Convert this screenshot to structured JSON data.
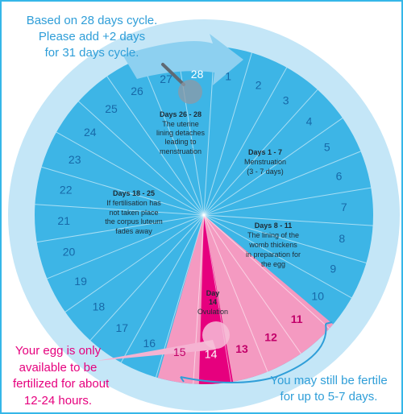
{
  "days": [
    "1",
    "2",
    "3",
    "4",
    "5",
    "6",
    "7",
    "8",
    "9",
    "10",
    "11",
    "12",
    "13",
    "14",
    "15",
    "16",
    "17",
    "18",
    "19",
    "20",
    "21",
    "22",
    "23",
    "24",
    "25",
    "26",
    "27",
    "28"
  ],
  "note_top": [
    "Based on 28 days cycle.",
    "Please add +2 days",
    "for 31 days cycle."
  ],
  "phases": [
    {
      "id": "days-26-28",
      "title": "Days 26 - 28",
      "lines": [
        "The uterine",
        "lining detaches",
        "leading to",
        "menstruation"
      ]
    },
    {
      "id": "days-1-7",
      "title": "Days 1 - 7",
      "lines": [
        "Menstruation",
        "(3 - 7 days)"
      ]
    },
    {
      "id": "days-18-25",
      "title": "Days 18 - 25",
      "lines": [
        "If fertilisation has",
        "not taken place",
        "the corpus luteum",
        "fades away"
      ]
    },
    {
      "id": "days-8-11",
      "title": "Days 8 - 11",
      "lines": [
        "The lining of the",
        "womb thickens",
        "in preparation for",
        "the egg"
      ]
    }
  ],
  "ovulation": {
    "title": "Day",
    "day": "14",
    "label": "Ovulation"
  },
  "note_egg": [
    "Your egg is only",
    "available to be",
    "fertilized for about",
    "12-24 hours."
  ],
  "note_fertile": [
    "You may still be fertile",
    "for up to 5-7 days."
  ],
  "colors": {
    "wheel": "#3db5e6",
    "wheel_light": "#c4e6f7",
    "fertile_pink": "#f49ac1",
    "ovulation_magenta": "#e6007e",
    "accent_blue": "#2f9ed8"
  }
}
